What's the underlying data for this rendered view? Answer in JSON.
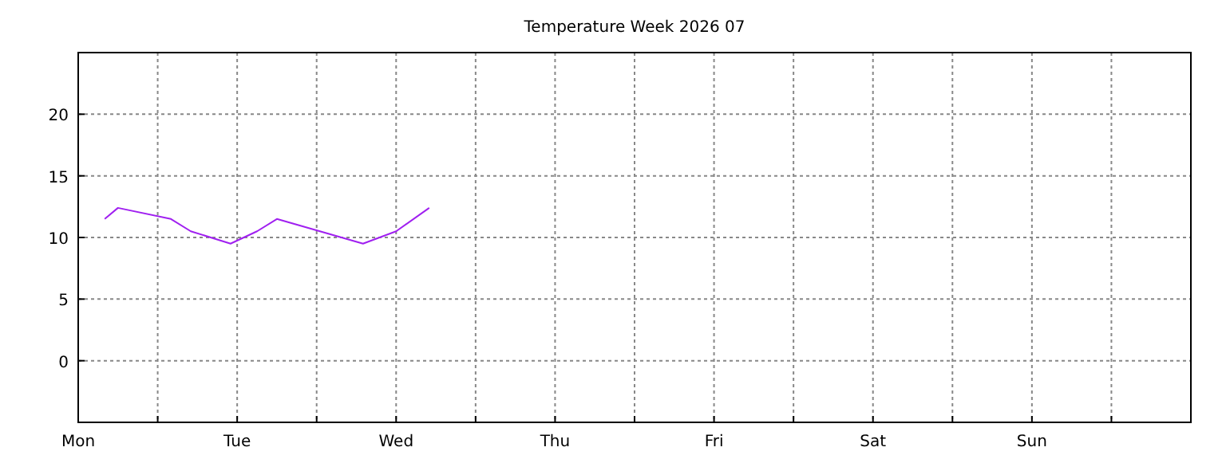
{
  "chart_data": {
    "type": "line",
    "title": "Temperature Week 2026 07",
    "categories": [
      "Mon",
      null,
      null,
      null,
      null,
      null,
      null,
      null,
      null,
      null,
      null,
      null,
      null,
      null,
      null,
      null,
      null,
      null,
      null,
      null,
      null,
      null,
      null,
      null,
      "Tue",
      null,
      null,
      null,
      null,
      null,
      null,
      null,
      null,
      null,
      null,
      null,
      null,
      null,
      null,
      null,
      null,
      null,
      null,
      null,
      null,
      null,
      null,
      null,
      "Wed",
      null,
      null,
      null,
      null,
      null,
      null,
      null,
      null,
      null,
      null,
      null,
      null,
      null,
      null,
      null,
      null,
      null,
      null,
      null,
      null,
      null,
      null,
      null,
      "Thu",
      null,
      null,
      null,
      null,
      null,
      null,
      null,
      null,
      null,
      null,
      null,
      null,
      null,
      null,
      null,
      null,
      null,
      null,
      null,
      null,
      null,
      null,
      null,
      "Fri",
      null,
      null,
      null,
      null,
      null,
      null,
      null,
      null,
      null,
      null,
      null,
      null,
      null,
      null,
      null,
      null,
      null,
      null,
      null,
      null,
      null,
      null,
      null,
      "Sat",
      null,
      null,
      null,
      null,
      null,
      null,
      null,
      null,
      null,
      null,
      null,
      null,
      null,
      null,
      null,
      null,
      null,
      null,
      null,
      null,
      null,
      null,
      null,
      "Sun",
      null,
      null,
      null,
      null,
      null,
      null,
      null,
      null,
      null,
      null,
      null,
      null,
      null,
      null,
      null,
      null,
      null,
      null,
      null,
      null,
      null,
      null,
      null
    ],
    "series": [
      {
        "color": "#a020f0",
        "values": [
          null,
          null,
          null,
          null,
          11.5,
          null,
          12.4,
          null,
          null,
          null,
          null,
          null,
          null,
          null,
          11.5,
          null,
          null,
          10.5,
          null,
          null,
          null,
          null,
          null,
          9.5,
          null,
          null,
          null,
          10.5,
          null,
          null,
          11.5,
          null,
          null,
          null,
          null,
          null,
          null,
          null,
          null,
          null,
          null,
          null,
          null,
          9.5,
          null,
          null,
          null,
          null,
          10.5,
          null,
          null,
          null,
          null,
          12.4,
          null,
          null,
          null,
          null,
          null,
          null,
          null,
          null,
          null,
          null,
          null,
          null,
          null,
          null,
          null,
          null,
          null,
          null,
          null,
          null,
          null,
          null,
          null,
          null,
          null,
          null,
          null,
          null,
          null,
          null,
          null,
          null,
          null,
          null,
          null,
          null,
          null,
          null,
          null,
          null,
          null,
          null,
          null,
          null,
          null,
          null,
          null,
          null,
          null,
          null,
          null,
          null,
          null,
          null,
          null,
          null,
          null,
          null,
          null,
          null,
          null,
          null,
          null,
          null,
          null,
          null,
          null,
          null,
          null,
          null,
          null,
          null,
          null,
          null,
          null,
          null,
          null,
          null,
          null,
          null,
          null,
          null,
          null,
          null,
          null,
          null,
          null,
          null,
          null,
          null,
          null,
          null,
          null,
          null,
          null,
          null,
          null,
          null,
          null,
          null,
          null,
          null,
          null,
          null,
          null,
          null,
          null,
          null,
          null,
          null,
          null,
          null,
          null,
          null
        ]
      }
    ],
    "ylim": [
      -5,
      25
    ],
    "yticks": [
      {
        "value": -5,
        "label": null
      },
      0,
      5,
      10,
      15,
      20
    ],
    "grid": true,
    "marker": "none",
    "line_style": "solid"
  }
}
